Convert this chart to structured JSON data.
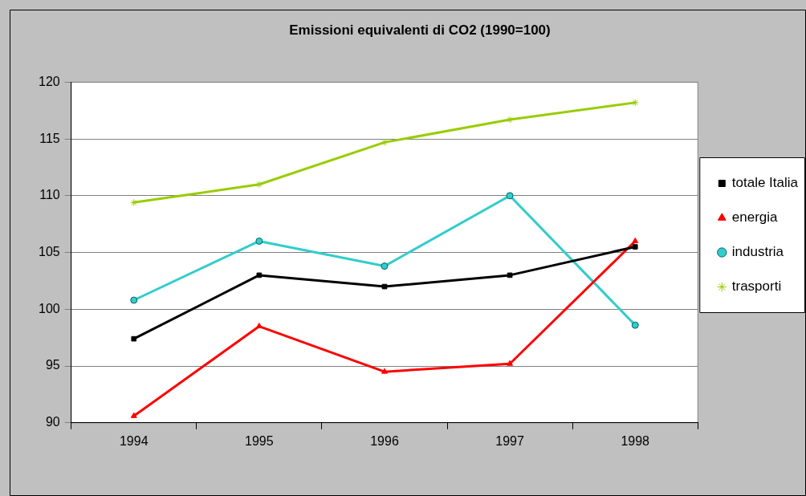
{
  "chart_data": {
    "type": "line",
    "title": "Emissioni equivalenti di CO2 (1990=100)",
    "categories": [
      "1994",
      "1995",
      "1996",
      "1997",
      "1998"
    ],
    "series": [
      {
        "name": "totale Italia",
        "color": "#000000",
        "marker": "square",
        "values": [
          97.4,
          103.0,
          102.0,
          103.0,
          105.5
        ]
      },
      {
        "name": "energia",
        "color": "#ff0000",
        "marker": "triangle",
        "values": [
          90.6,
          98.5,
          94.5,
          95.2,
          106.0
        ]
      },
      {
        "name": "industria",
        "color": "#33cccc",
        "marker": "circle",
        "values": [
          100.8,
          106.0,
          103.8,
          110.0,
          98.6
        ]
      },
      {
        "name": "trasporti",
        "color": "#99cc00",
        "marker": "cross",
        "values": [
          109.4,
          111.0,
          114.7,
          116.7,
          118.2
        ]
      }
    ],
    "ylim": [
      90,
      120
    ],
    "yticks": [
      90,
      95,
      100,
      105,
      110,
      115,
      120
    ],
    "grid": "y",
    "legend": "right",
    "line_style": "solid"
  }
}
